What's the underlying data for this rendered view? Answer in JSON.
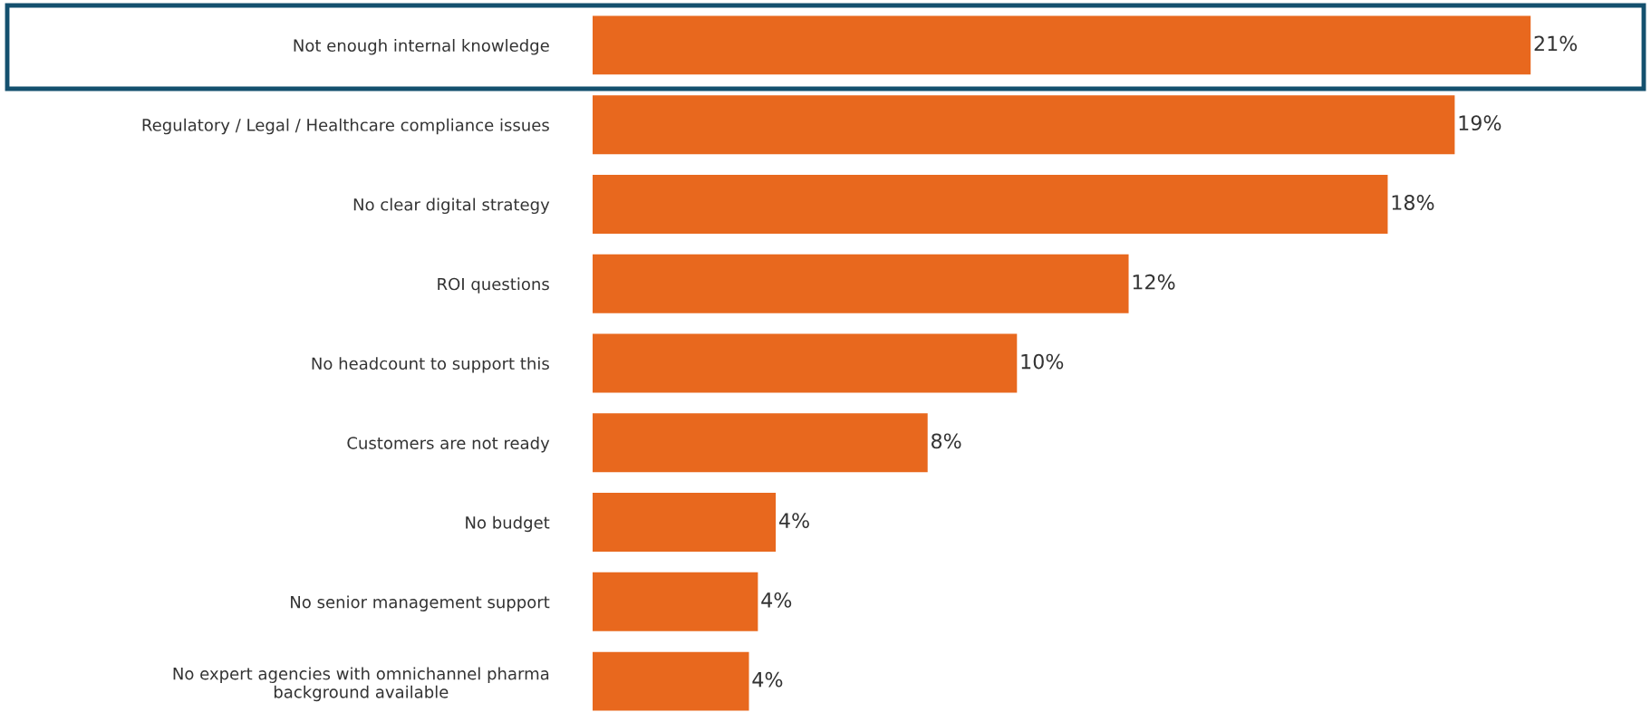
{
  "chart_data": {
    "type": "bar",
    "orientation": "horizontal",
    "categories": [
      "Not enough internal knowledge",
      "Regulatory / Legal / Healthcare compliance issues",
      "No clear digital strategy",
      "ROI questions",
      "No headcount to support this",
      "Customers are not ready",
      "No budget",
      "No senior management support",
      "No expert agencies with omnichannel pharma\nbackground available"
    ],
    "values": [
      21,
      19.3,
      17.8,
      12,
      9.5,
      7.5,
      4.1,
      3.7,
      3.5
    ],
    "value_labels": [
      "21%",
      "19%",
      "18%",
      "12%",
      "10%",
      "8%",
      "4%",
      "4%",
      "4%"
    ],
    "color": "#e8681e",
    "tick_labels": "y",
    "grid": false,
    "legend": false
  }
}
